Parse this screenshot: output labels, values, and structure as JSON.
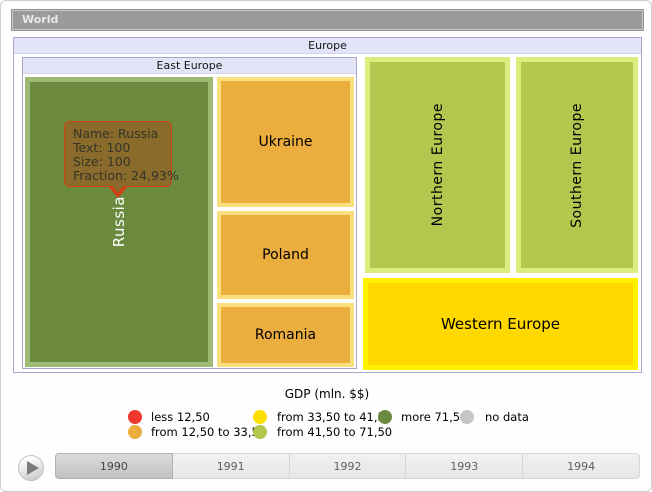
{
  "breadcrumb": {
    "label": "World"
  },
  "treemap": {
    "europe_header": "Europe",
    "east_europe_header": "East Europe",
    "tiles": [
      {
        "id": "russia",
        "label": "Russia",
        "fill": "#6C8A3E",
        "frame": "#9CBA74",
        "label_color": "#FFFFFF",
        "orientation": "vertical"
      },
      {
        "id": "ukraine",
        "label": "Ukraine",
        "fill": "#EAAD3E",
        "frame": "#FADF7D",
        "orientation": "horizontal"
      },
      {
        "id": "poland",
        "label": "Poland",
        "fill": "#EAAD3E",
        "frame": "#FADF7D",
        "orientation": "horizontal"
      },
      {
        "id": "romania",
        "label": "Romania",
        "fill": "#EAAD3E",
        "frame": "#FADF7D",
        "orientation": "horizontal"
      },
      {
        "id": "northern_europe",
        "label": "Northern Europe",
        "fill": "#B2C74D",
        "frame": "#DAEE7E",
        "orientation": "vertical"
      },
      {
        "id": "southern_europe",
        "label": "Southern Europe",
        "fill": "#B2C74D",
        "frame": "#DAEE7E",
        "orientation": "vertical"
      },
      {
        "id": "western_europe",
        "label": "Western Europe",
        "fill": "#FFD800",
        "frame": "#FFF101",
        "orientation": "horizontal"
      }
    ]
  },
  "tooltip": {
    "line1": "Name: Russia",
    "line2": "Text: 100",
    "line3": "Size: 100",
    "line4": "Fraction: 24,93%",
    "background": "#8A6B2B",
    "border_color": "#D24112"
  },
  "legend": {
    "title": "GDP (mln. $$)",
    "items": [
      {
        "label": "less 12,50",
        "color": "#F0392E"
      },
      {
        "label": "from 12,50 to 33,50",
        "color": "#EAAD3E"
      },
      {
        "label": "from 33,50 to 41,50",
        "color": "#FFDF00"
      },
      {
        "label": "from 41,50 to 71,50",
        "color": "#B2C74D"
      },
      {
        "label": "more 71,50",
        "color": "#6C8A3E"
      },
      {
        "label": "no data",
        "color": "#C6C6C6"
      }
    ]
  },
  "timeline": {
    "years": [
      "1990",
      "1991",
      "1992",
      "1993",
      "1994"
    ],
    "selected_year": "1990",
    "selected_index": 0
  },
  "chart_data": {
    "type": "treemap",
    "title": "GDP (mln. $$)",
    "drilldown_path": [
      "World",
      "Europe"
    ],
    "selected_year": "1990",
    "timeline_years": [
      "1990",
      "1991",
      "1992",
      "1993",
      "1994"
    ],
    "visible_nodes": [
      {
        "name": "Europe",
        "parent": "World",
        "role": "root-header"
      },
      {
        "name": "East Europe",
        "parent": "Europe",
        "role": "group",
        "children": [
          "Russia",
          "Ukraine",
          "Poland",
          "Romania"
        ]
      },
      {
        "name": "Russia",
        "parent": "East Europe",
        "text": 100,
        "size": 100,
        "fraction": "24,93%",
        "bin": "more 71,50",
        "color": "#6C8A3E"
      },
      {
        "name": "Ukraine",
        "parent": "East Europe",
        "bin": "from 12,50 to 33,50",
        "color": "#EAAD3E"
      },
      {
        "name": "Poland",
        "parent": "East Europe",
        "bin": "from 12,50 to 33,50",
        "color": "#EAAD3E"
      },
      {
        "name": "Romania",
        "parent": "East Europe",
        "bin": "from 12,50 to 33,50",
        "color": "#EAAD3E"
      },
      {
        "name": "Northern Europe",
        "parent": "Europe",
        "bin": "from 41,50 to 71,50",
        "color": "#B2C74D"
      },
      {
        "name": "Southern Europe",
        "parent": "Europe",
        "bin": "from 41,50 to 71,50",
        "color": "#B2C74D"
      },
      {
        "name": "Western Europe",
        "parent": "Europe",
        "bin": "from 33,50 to 41,50",
        "color": "#FFD800"
      }
    ],
    "legend_bins": [
      {
        "label": "less 12,50",
        "color": "#F0392E"
      },
      {
        "label": "from 12,50 to 33,50",
        "color": "#EAAD3E"
      },
      {
        "label": "from 33,50 to 41,50",
        "color": "#FFDF00"
      },
      {
        "label": "from 41,50 to 71,50",
        "color": "#B2C74D"
      },
      {
        "label": "more 71,50",
        "color": "#6C8A3E"
      },
      {
        "label": "no data",
        "color": "#C6C6C6"
      }
    ]
  }
}
